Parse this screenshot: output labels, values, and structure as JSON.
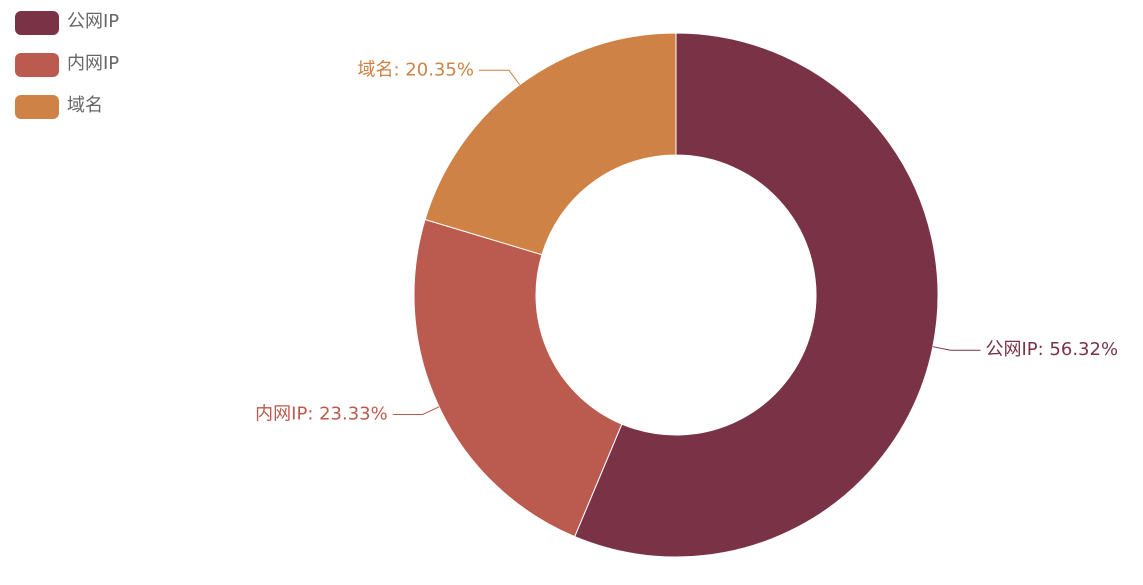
{
  "chart_data": {
    "type": "pie",
    "categories": [
      "公网IP",
      "内网IP",
      "域名"
    ],
    "values": [
      56.32,
      23.33,
      20.35
    ],
    "value_labels": [
      "公网IP: 56.32%",
      "内网IP: 23.33%",
      "域名: 20.35%"
    ],
    "colors": [
      "#7a3346",
      "#bb5a4e",
      "#cf8245"
    ],
    "legend": "top-left"
  }
}
